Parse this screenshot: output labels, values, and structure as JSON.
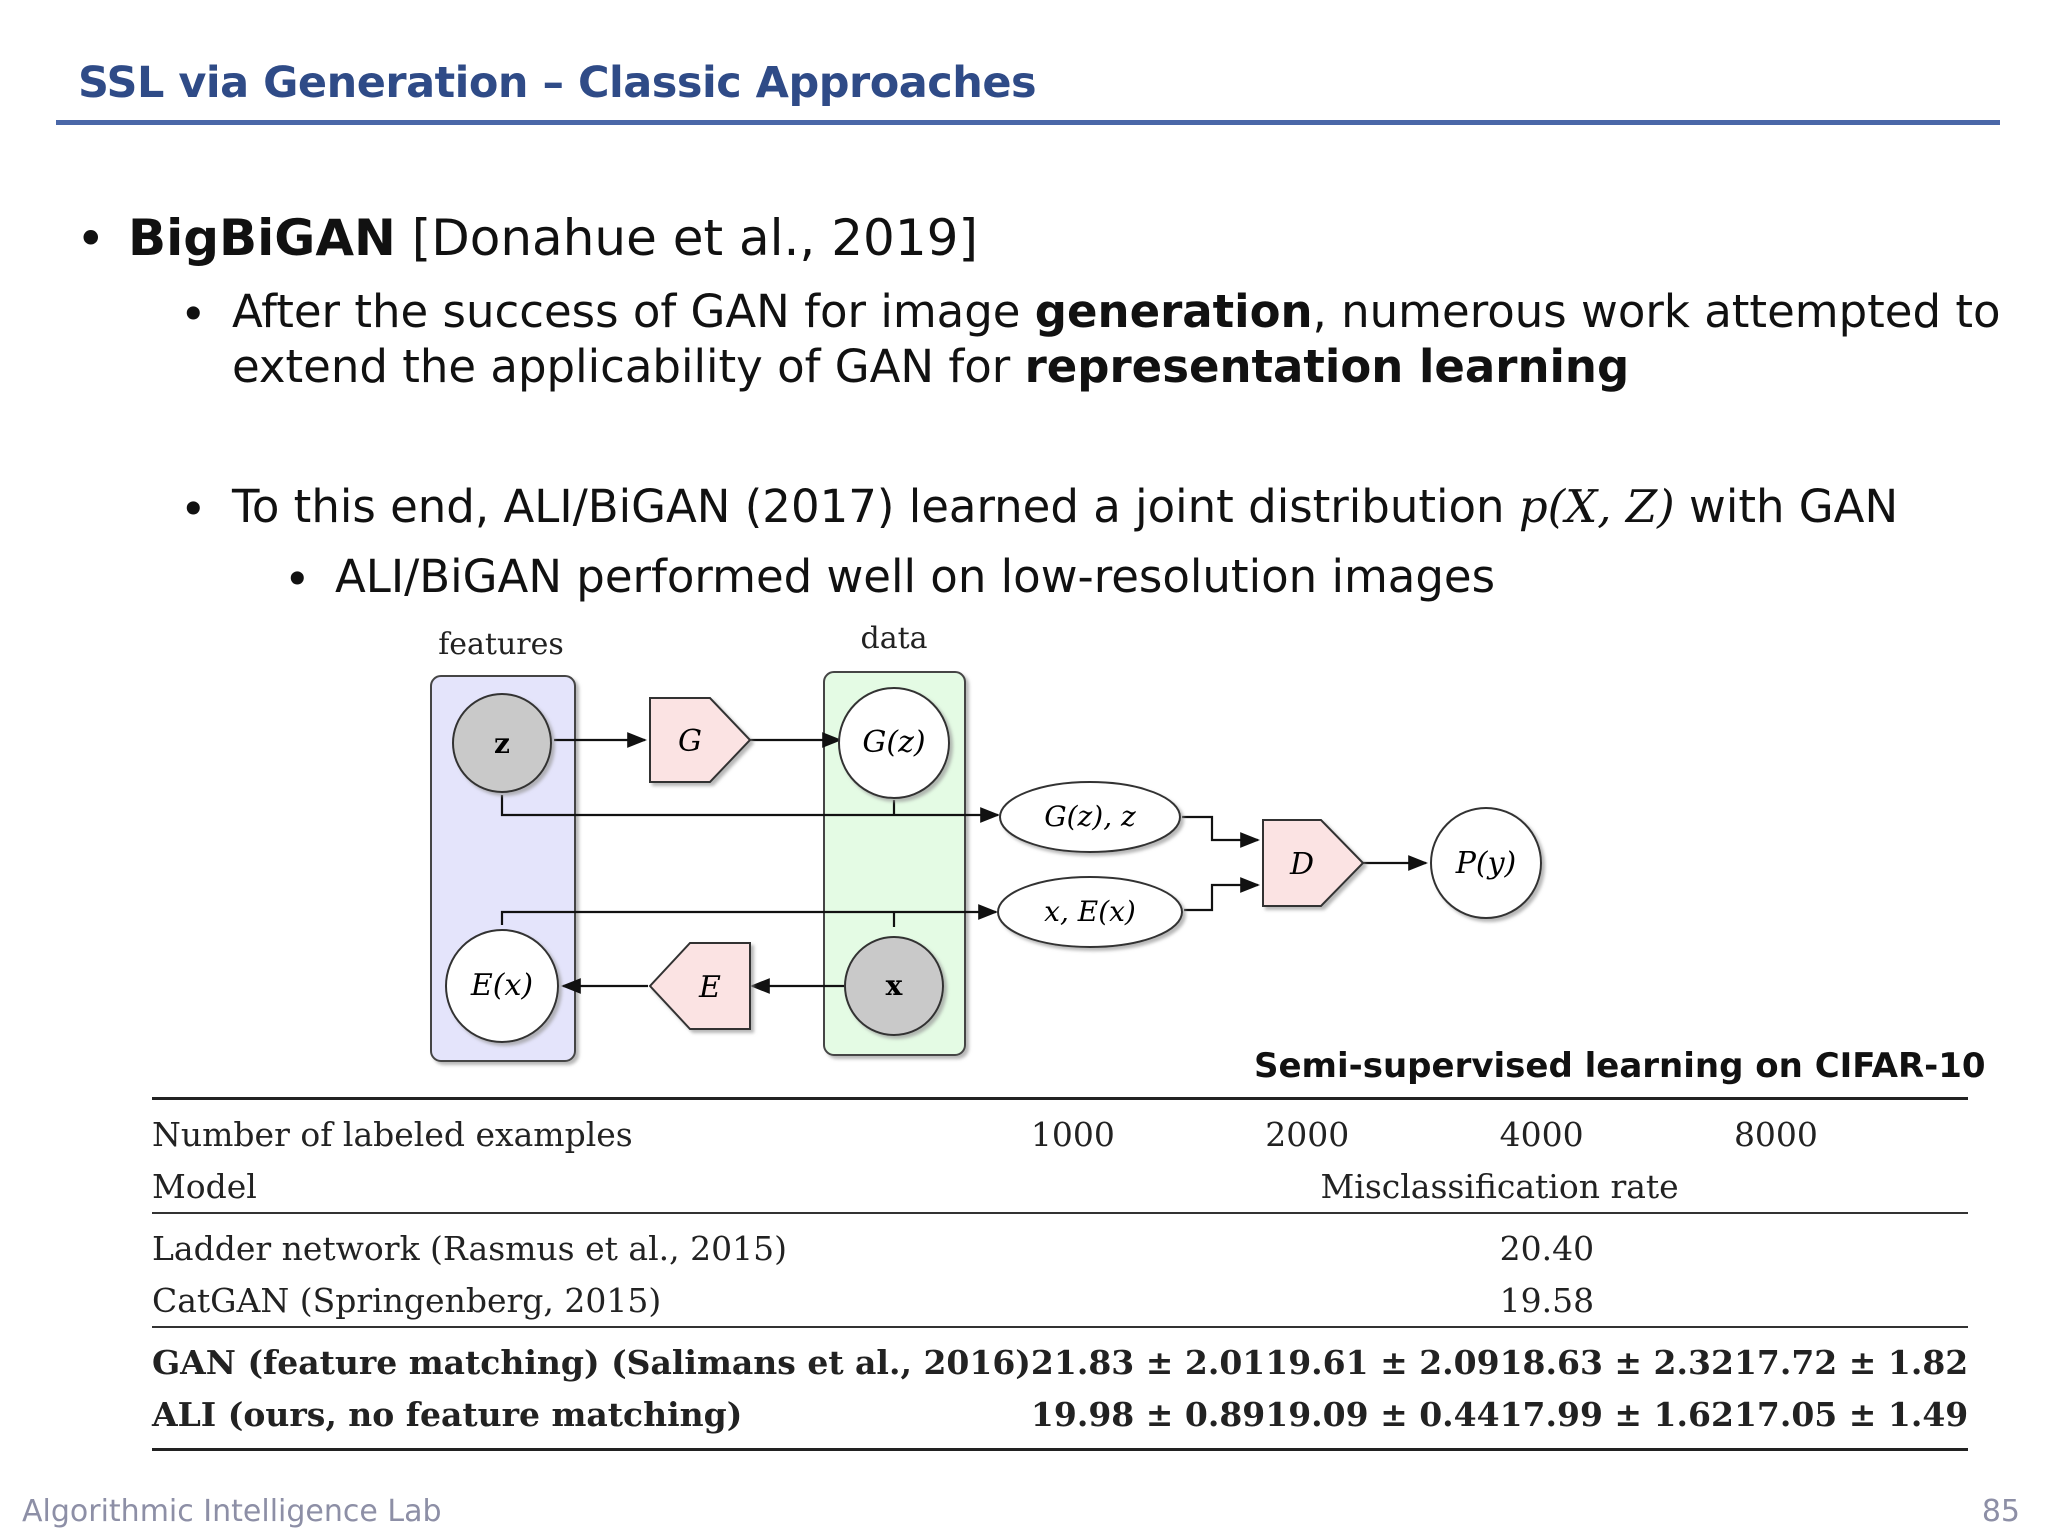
{
  "slide": {
    "title": "SSL via Generation – Classic Approaches",
    "page_number": "85",
    "footer": "Algorithmic Intelligence Lab"
  },
  "bullets": {
    "main_bold": "BigBiGAN",
    "main_rest": " [Donahue et al., 2019]",
    "sub1_line1_a": "After the success of GAN for image ",
    "sub1_line1_b": "generation",
    "sub1_line1_c": ", numerous work attempted to",
    "sub1_line2_a": "extend the applicability of GAN for ",
    "sub1_line2_b": "representation learning",
    "sub2_a": "To this end, ALI/BiGAN (2017) learned a joint distribution ",
    "sub2_math": "p(X, Z)",
    "sub2_b": " with GAN",
    "sub3": "ALI/BiGAN performed well on low-resolution images",
    "dot": "•"
  },
  "diagram": {
    "features_label": "features",
    "data_label": "data",
    "z": "z",
    "G": "G",
    "Gz": "G(z)",
    "Gz_z": "G(z), z",
    "x_Ex": "x, E(x)",
    "D": "D",
    "Py": "P(y)",
    "Ex": "E(x)",
    "E": "E",
    "x": "x",
    "colors": {
      "features_box": "#e4e4fb",
      "data_box": "#e4fbe4",
      "pentagon": "#fbe3e3",
      "latent_node": "#c9c9c9"
    }
  },
  "table": {
    "caption": "Semi-supervised learning on CIFAR-10",
    "header_row1": [
      "Number of labeled examples",
      "1000",
      "2000",
      "4000",
      "8000"
    ],
    "header_row2_model": "Model",
    "header_row2_metric": "Misclassification rate",
    "rows": [
      {
        "model": "Ladder network (Rasmus et al., 2015)",
        "v1000": "",
        "v2000": "",
        "v4000": "20.40",
        "v8000": ""
      },
      {
        "model": "CatGAN (Springenberg, 2015)",
        "v1000": "",
        "v2000": "",
        "v4000": "19.58",
        "v8000": ""
      },
      {
        "model": "GAN (feature matching) (Salimans et al., 2016)",
        "v1000": "21.83 ± 2.01",
        "v2000": "19.61 ± 2.09",
        "v4000": "18.63 ± 2.32",
        "v8000": "17.72 ± 1.82"
      },
      {
        "model": "ALI (ours, no feature matching)",
        "v1000": "19.98 ± 0.89",
        "v2000": "19.09 ± 0.44",
        "v4000": "17.99 ± 1.62",
        "v8000": "17.05 ± 1.49"
      }
    ]
  }
}
